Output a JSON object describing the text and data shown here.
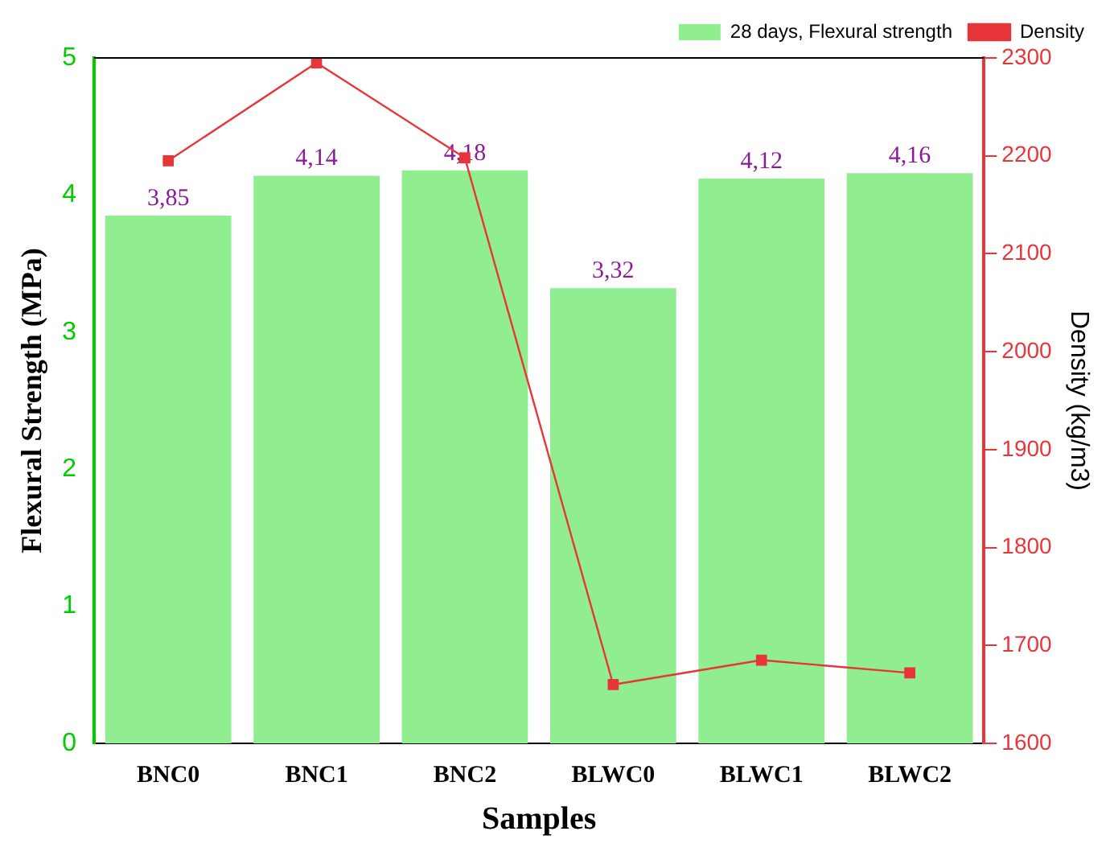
{
  "chart_data": {
    "type": "bar",
    "xlabel": "Samples",
    "ylabel": "Flexural Strength (MPa)",
    "y2label": "Density (kg/m3)",
    "categories": [
      "BNC0",
      "BNC1",
      "BNC2",
      "BLWC0",
      "BLWC1",
      "BLWC2"
    ],
    "series": [
      {
        "name": "28 days, Flexural strength",
        "color": "#90ee90",
        "values": [
          3.85,
          4.14,
          4.18,
          3.32,
          4.12,
          4.16
        ],
        "value_labels": [
          "3,85",
          "4,14",
          "4,18",
          "3,32",
          "4,12",
          "4,16"
        ]
      },
      {
        "name": "Density",
        "type": "line",
        "axis": "y2",
        "color": "#e8353a",
        "marker": "square",
        "values": [
          2195,
          2295,
          2198,
          1660,
          1685,
          1672
        ]
      }
    ],
    "ylim": [
      0,
      5
    ],
    "yticks": [
      0,
      1,
      2,
      3,
      4,
      5
    ],
    "y2lim": [
      1600,
      2300
    ],
    "y2ticks": [
      1600,
      1700,
      1800,
      1900,
      2000,
      2100,
      2200,
      2300
    ],
    "grid": false,
    "legend": "top right"
  }
}
